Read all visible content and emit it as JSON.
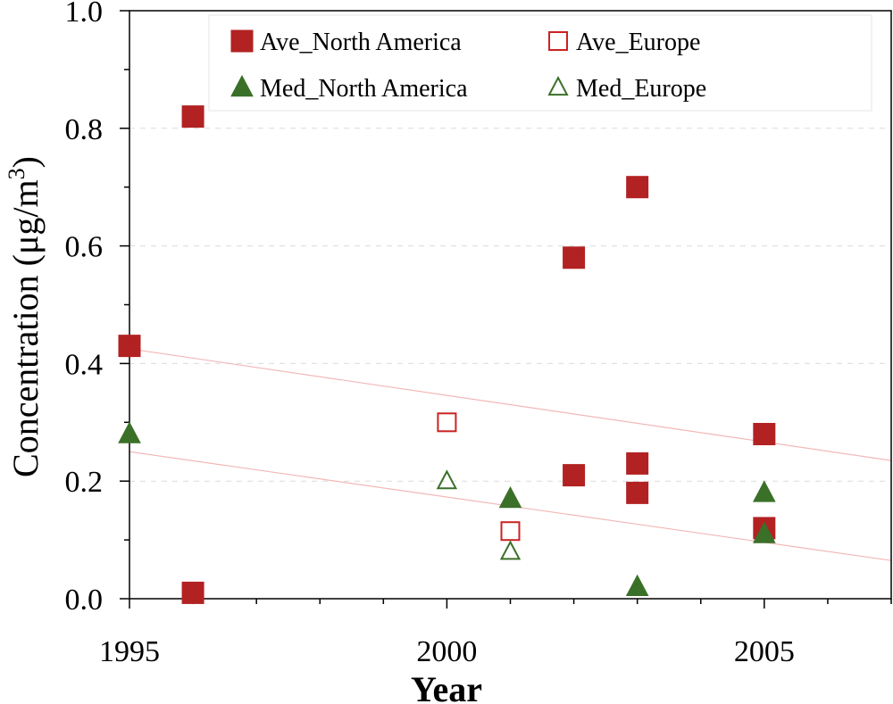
{
  "chart_data": {
    "type": "scatter",
    "title": "",
    "xlabel": "Year",
    "ylabel_main": "Concentration (μg/m",
    "ylabel_sup": "3",
    "ylabel_close": ")",
    "xlim": [
      1995,
      2007
    ],
    "ylim": [
      0.0,
      1.0
    ],
    "x_ticks": [
      {
        "value": 1995,
        "label": "1995"
      },
      {
        "value": 2000,
        "label": "2000"
      },
      {
        "value": 2005,
        "label": "2005"
      }
    ],
    "x_minor_ticks": [
      1996,
      1997,
      1998,
      1999,
      2001,
      2002,
      2003,
      2004,
      2006,
      2007
    ],
    "y_ticks": [
      {
        "value": 0.0,
        "label": "0.0"
      },
      {
        "value": 0.2,
        "label": "0.2"
      },
      {
        "value": 0.4,
        "label": "0.4"
      },
      {
        "value": 0.6,
        "label": "0.6"
      },
      {
        "value": 0.8,
        "label": "0.8"
      },
      {
        "value": 1.0,
        "label": "1.0"
      }
    ],
    "y_minor_ticks": [
      0.1,
      0.3,
      0.5,
      0.7,
      0.9
    ],
    "grid_y": [
      0.2,
      0.4,
      0.6,
      0.8
    ],
    "legend_position": "top-center",
    "series": [
      {
        "name": "Ave_North America",
        "marker": "square",
        "filled": true,
        "color": "#b22222",
        "points": [
          {
            "x": 1995,
            "y": 0.43
          },
          {
            "x": 1996,
            "y": 0.82
          },
          {
            "x": 1996,
            "y": 0.01
          },
          {
            "x": 2002,
            "y": 0.58
          },
          {
            "x": 2002,
            "y": 0.21
          },
          {
            "x": 2003,
            "y": 0.7
          },
          {
            "x": 2003,
            "y": 0.23
          },
          {
            "x": 2003,
            "y": 0.18
          },
          {
            "x": 2005,
            "y": 0.28
          },
          {
            "x": 2005,
            "y": 0.12
          }
        ]
      },
      {
        "name": "Ave_Europe",
        "marker": "square",
        "filled": false,
        "color": "#cc2222",
        "points": [
          {
            "x": 2000,
            "y": 0.3
          },
          {
            "x": 2001,
            "y": 0.115
          }
        ]
      },
      {
        "name": "Med_North America",
        "marker": "triangle",
        "filled": true,
        "color": "#3a7028",
        "points": [
          {
            "x": 1995,
            "y": 0.28
          },
          {
            "x": 2001,
            "y": 0.17
          },
          {
            "x": 2003,
            "y": 0.02
          },
          {
            "x": 2005,
            "y": 0.18
          },
          {
            "x": 2005,
            "y": 0.11
          }
        ]
      },
      {
        "name": "Med_Europe",
        "marker": "triangle",
        "filled": false,
        "color": "#3a7028",
        "points": [
          {
            "x": 2000,
            "y": 0.2
          },
          {
            "x": 2001,
            "y": 0.08
          }
        ]
      }
    ],
    "trendlines": [
      {
        "name": "ave-trend",
        "color": "#f2b8b8",
        "from": {
          "x": 1995,
          "y": 0.425
        },
        "to": {
          "x": 2007,
          "y": 0.235
        }
      },
      {
        "name": "med-trend",
        "color": "#f2b8b8",
        "from": {
          "x": 1995,
          "y": 0.25
        },
        "to": {
          "x": 2007,
          "y": 0.065
        }
      }
    ]
  }
}
